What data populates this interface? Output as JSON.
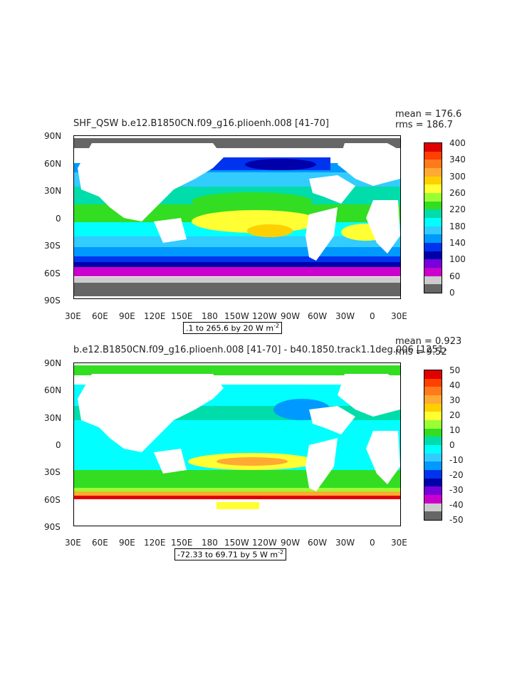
{
  "panels": [
    {
      "title": "SHF_QSW b.e12.B1850CN.f09_g16.plioenh.008 [41-70]",
      "mean": "mean = 176.6",
      "rms": "rms = 186.7",
      "info": ".1 to 265.6 by 20  W m",
      "info_sup": "-2",
      "colorbar_labels": [
        "400",
        "340",
        "300",
        "260",
        "220",
        "180",
        "140",
        "100",
        "60",
        "0"
      ],
      "colorbar_colors": [
        "#e00000",
        "#ff4000",
        "#ff7a1a",
        "#ffaa33",
        "#ffd000",
        "#ffff33",
        "#99ff33",
        "#33dd22",
        "#00ddaa",
        "#00ffff",
        "#33ccff",
        "#0099ff",
        "#0033ee",
        "#0000aa",
        "#7700dd",
        "#cc00cc",
        "#cccccc",
        "#666666"
      ]
    },
    {
      "title": "b.e12.B1850CN.f09_g16.plioenh.008 [41-70] - b40.1850.track1.1deg.006 [1251-",
      "mean": "mean = 0.923",
      "rms": "rms = 9.52",
      "info": "-72.33 to 69.71 by 5  W m",
      "info_sup": "-2",
      "colorbar_labels": [
        "50",
        "40",
        "30",
        "20",
        "10",
        "0",
        "-10",
        "-20",
        "-30",
        "-40",
        "-50"
      ],
      "colorbar_colors": [
        "#e00000",
        "#ff4000",
        "#ff7a1a",
        "#ffaa33",
        "#ffd000",
        "#ffff33",
        "#99ff33",
        "#33dd22",
        "#00ddaa",
        "#00ffff",
        "#33ccff",
        "#0099ff",
        "#0033ee",
        "#0000aa",
        "#7700dd",
        "#cc00cc",
        "#cccccc",
        "#666666"
      ]
    }
  ],
  "chart_data": [
    {
      "type": "heatmap",
      "title": "SHF_QSW b.e12.B1850CN.f09_g16.plioenh.008 [41-70]",
      "x_ticks": [
        "30E",
        "60E",
        "90E",
        "120E",
        "150E",
        "180",
        "150W",
        "120W",
        "90W",
        "60W",
        "30W",
        "0",
        "30E"
      ],
      "y_ticks": [
        "90N",
        "60N",
        "30N",
        "0",
        "30S",
        "60S",
        "90S"
      ],
      "colorbar": [
        0,
        60,
        100,
        140,
        180,
        220,
        260,
        300,
        340,
        400
      ],
      "units": "W m-2",
      "range": [
        0.1,
        265.6
      ],
      "contour_interval": 20,
      "mean": 176.6,
      "rms": 186.7
    },
    {
      "type": "heatmap",
      "title": "b.e12.B1850CN.f09_g16.plioenh.008 [41-70] - b40.1850.track1.1deg.006 [1251-",
      "x_ticks": [
        "30E",
        "60E",
        "90E",
        "120E",
        "150E",
        "180",
        "150W",
        "120W",
        "90W",
        "60W",
        "30W",
        "0",
        "30E"
      ],
      "y_ticks": [
        "90N",
        "60N",
        "30N",
        "0",
        "30S",
        "60S",
        "90S"
      ],
      "colorbar": [
        -50,
        -40,
        -30,
        -20,
        -10,
        0,
        10,
        20,
        30,
        40,
        50
      ],
      "units": "W m-2",
      "range": [
        -72.33,
        69.71
      ],
      "contour_interval": 5,
      "mean": 0.923,
      "rms": 9.52
    }
  ]
}
